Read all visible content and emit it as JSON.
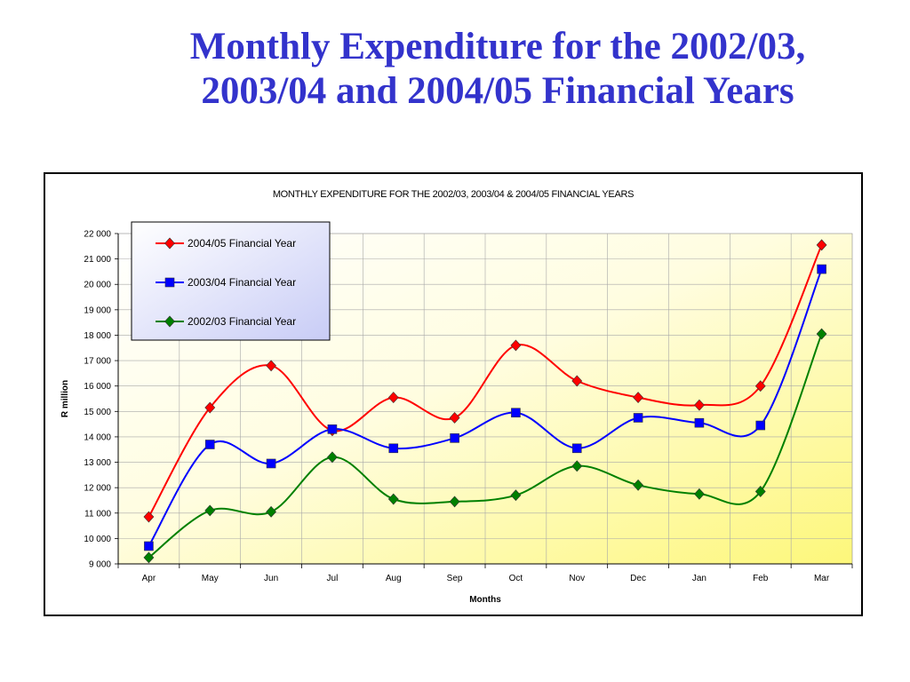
{
  "slide": {
    "title_line1": "Monthly Expenditure for the 2002/03,",
    "title_line2": "2003/04 and 2004/05 Financial Years"
  },
  "chart_data": {
    "type": "line",
    "title": "MONTHLY EXPENDITURE FOR THE 2002/03, 2003/04 & 2004/05 FINANCIAL YEARS",
    "xlabel": "Months",
    "ylabel": "R million",
    "categories": [
      "Apr",
      "May",
      "Jun",
      "Jul",
      "Aug",
      "Sep",
      "Oct",
      "Nov",
      "Dec",
      "Jan",
      "Feb",
      "Mar"
    ],
    "ylim": [
      9000,
      22000
    ],
    "ytick_step": 1000,
    "ytick_labels": [
      "9 000",
      "10 000",
      "11 000",
      "12 000",
      "13 000",
      "14 000",
      "15 000",
      "16 000",
      "17 000",
      "18 000",
      "19 000",
      "20 000",
      "21 000",
      "22 000"
    ],
    "grid": true,
    "smooth": true,
    "legend_position": "top-left",
    "series": [
      {
        "name": "2004/05 Financial Year",
        "color": "#ff0000",
        "marker": "diamond",
        "values": [
          10850,
          15150,
          16800,
          14250,
          15550,
          14750,
          17600,
          16200,
          15550,
          15250,
          16000,
          21550
        ]
      },
      {
        "name": "2003/04 Financial Year",
        "color": "#0000ff",
        "marker": "square",
        "values": [
          9700,
          13700,
          12950,
          14300,
          13550,
          13950,
          14950,
          13550,
          14750,
          14550,
          14450,
          20600
        ]
      },
      {
        "name": "2002/03 Financial Year",
        "color": "#008000",
        "marker": "diamond",
        "values": [
          9250,
          11100,
          11050,
          13200,
          11550,
          11450,
          11700,
          12850,
          12100,
          11750,
          11850,
          18050
        ]
      }
    ]
  }
}
